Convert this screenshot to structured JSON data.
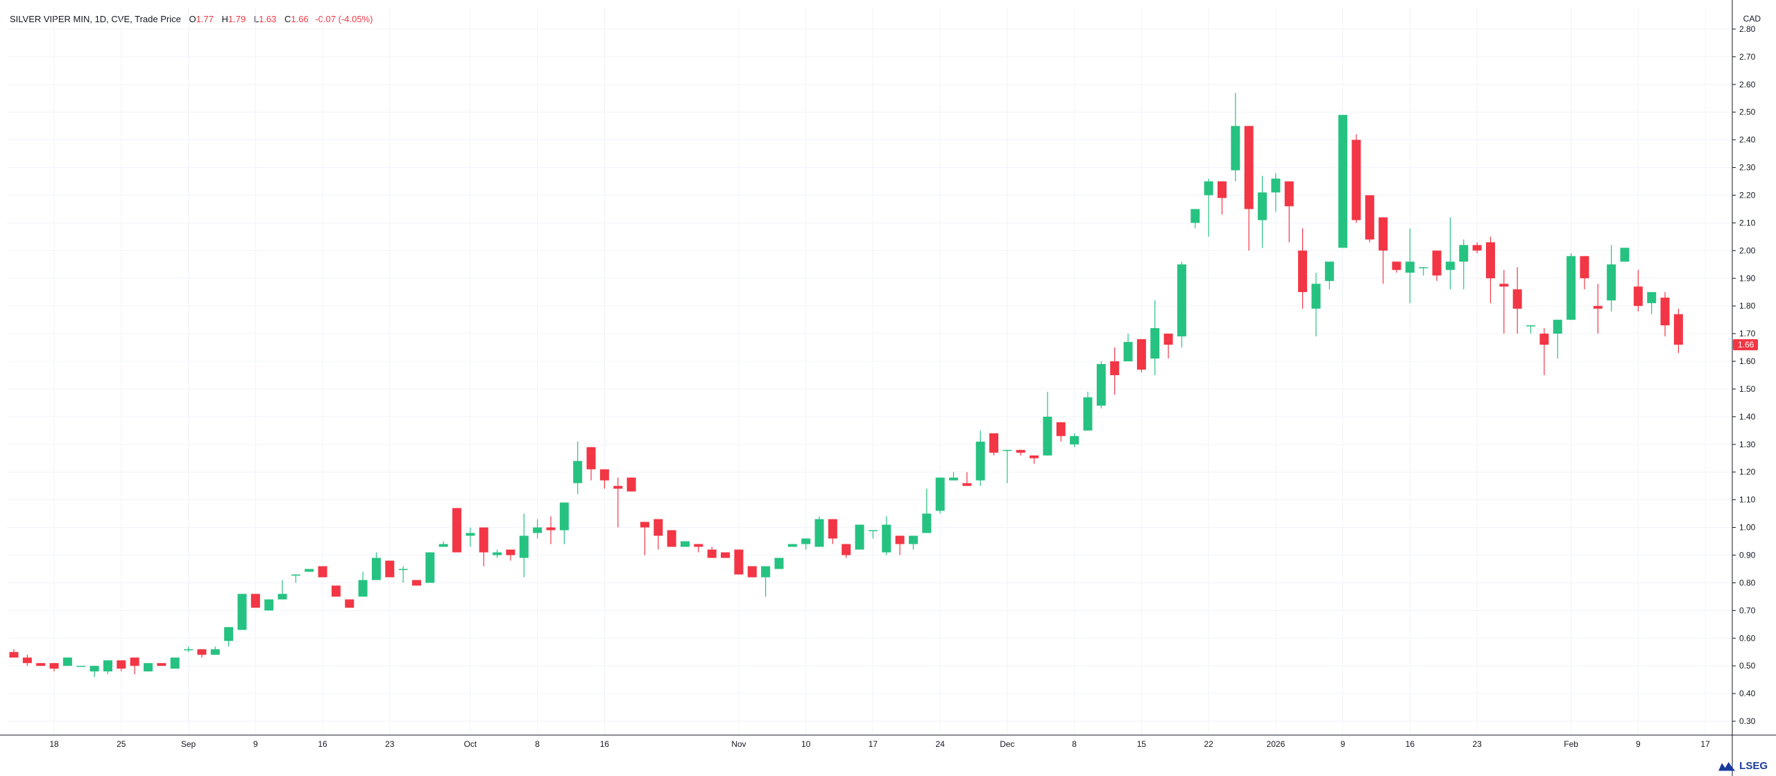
{
  "header": {
    "symbol": "SILVER VIPER MIN, 1D, CVE, Trade Price",
    "o_label": "O",
    "o_value": "1.77",
    "h_label": "H",
    "h_value": "1.79",
    "l_label": "L",
    "l_value": "1.63",
    "c_label": "C",
    "c_value": "1.66",
    "change": "-0.07 (-4.05%)"
  },
  "currency": "CAD",
  "brand": "LSEG",
  "colors": {
    "up": "#26c281",
    "down": "#f23645",
    "grid": "#f0f3fa",
    "axis": "#131722"
  },
  "chart_data": {
    "type": "candlestick",
    "ylim": [
      0.25,
      2.88
    ],
    "y_ticks": [
      "0.30",
      "0.40",
      "0.50",
      "0.60",
      "0.70",
      "0.80",
      "0.90",
      "1.00",
      "1.10",
      "1.20",
      "1.30",
      "1.40",
      "1.50",
      "1.60",
      "1.70",
      "1.80",
      "1.90",
      "2.00",
      "2.10",
      "2.20",
      "2.30",
      "2.40",
      "2.50",
      "2.60",
      "2.70",
      "2.80"
    ],
    "x_ticks": [
      {
        "label": "18",
        "index": 3
      },
      {
        "label": "25",
        "index": 8
      },
      {
        "label": "Sep",
        "index": 13
      },
      {
        "label": "9",
        "index": 18
      },
      {
        "label": "16",
        "index": 23
      },
      {
        "label": "23",
        "index": 28
      },
      {
        "label": "Oct",
        "index": 34
      },
      {
        "label": "8",
        "index": 39
      },
      {
        "label": "16",
        "index": 44
      },
      {
        "label": "Nov",
        "index": 54
      },
      {
        "label": "10",
        "index": 59
      },
      {
        "label": "17",
        "index": 64
      },
      {
        "label": "24",
        "index": 69
      },
      {
        "label": "Dec",
        "index": 74
      },
      {
        "label": "8",
        "index": 79
      },
      {
        "label": "15",
        "index": 84
      },
      {
        "label": "22",
        "index": 89
      },
      {
        "label": "2026",
        "index": 94
      },
      {
        "label": "9",
        "index": 99
      },
      {
        "label": "16",
        "index": 104
      },
      {
        "label": "23",
        "index": 109
      },
      {
        "label": "Feb",
        "index": 116
      },
      {
        "label": "9",
        "index": 121
      },
      {
        "label": "17",
        "index": 126
      }
    ],
    "last_price_label": "1.66",
    "candles": [
      [
        0.55,
        0.56,
        0.53,
        0.53
      ],
      [
        0.53,
        0.54,
        0.5,
        0.51
      ],
      [
        0.51,
        0.51,
        0.5,
        0.5
      ],
      [
        0.51,
        0.51,
        0.48,
        0.49
      ],
      [
        0.5,
        0.53,
        0.5,
        0.53
      ],
      [
        0.5,
        0.5,
        0.5,
        0.5
      ],
      [
        0.48,
        0.5,
        0.46,
        0.5
      ],
      [
        0.48,
        0.52,
        0.47,
        0.52
      ],
      [
        0.52,
        0.52,
        0.48,
        0.49
      ],
      [
        0.53,
        0.53,
        0.47,
        0.5
      ],
      [
        0.48,
        0.51,
        0.48,
        0.51
      ],
      [
        0.51,
        0.51,
        0.5,
        0.5
      ],
      [
        0.49,
        0.53,
        0.49,
        0.53
      ],
      [
        0.56,
        0.57,
        0.55,
        0.56
      ],
      [
        0.56,
        0.56,
        0.53,
        0.54
      ],
      [
        0.54,
        0.57,
        0.54,
        0.56
      ],
      [
        0.59,
        0.64,
        0.57,
        0.64
      ],
      [
        0.63,
        0.76,
        0.63,
        0.76
      ],
      [
        0.76,
        0.76,
        0.71,
        0.71
      ],
      [
        0.7,
        0.74,
        0.7,
        0.74
      ],
      [
        0.74,
        0.81,
        0.74,
        0.76
      ],
      [
        0.83,
        0.83,
        0.8,
        0.83
      ],
      [
        0.84,
        0.85,
        0.84,
        0.85
      ],
      [
        0.86,
        0.86,
        0.82,
        0.82
      ],
      [
        0.79,
        0.79,
        0.75,
        0.75
      ],
      [
        0.74,
        0.74,
        0.71,
        0.71
      ],
      [
        0.75,
        0.84,
        0.75,
        0.81
      ],
      [
        0.81,
        0.91,
        0.81,
        0.89
      ],
      [
        0.88,
        0.88,
        0.82,
        0.82
      ],
      [
        0.85,
        0.86,
        0.8,
        0.85
      ],
      [
        0.81,
        0.81,
        0.79,
        0.79
      ],
      [
        0.8,
        0.91,
        0.8,
        0.91
      ],
      [
        0.93,
        0.95,
        0.93,
        0.94
      ],
      [
        1.07,
        1.07,
        0.91,
        0.91
      ],
      [
        0.97,
        1.0,
        0.93,
        0.98
      ],
      [
        1.0,
        1.0,
        0.86,
        0.91
      ],
      [
        0.9,
        0.92,
        0.89,
        0.91
      ],
      [
        0.92,
        0.92,
        0.88,
        0.9
      ],
      [
        0.89,
        1.05,
        0.82,
        0.97
      ],
      [
        0.98,
        1.03,
        0.96,
        1.0
      ],
      [
        1.0,
        1.04,
        0.94,
        0.99
      ],
      [
        0.99,
        1.09,
        0.94,
        1.09
      ],
      [
        1.16,
        1.31,
        1.12,
        1.24
      ],
      [
        1.29,
        1.29,
        1.17,
        1.21
      ],
      [
        1.21,
        1.21,
        1.14,
        1.17
      ],
      [
        1.15,
        1.18,
        1.0,
        1.14
      ],
      [
        1.18,
        1.18,
        1.13,
        1.13
      ],
      [
        1.02,
        1.02,
        0.9,
        1.0
      ],
      [
        1.03,
        1.03,
        0.92,
        0.97
      ],
      [
        0.99,
        0.99,
        0.93,
        0.93
      ],
      [
        0.93,
        0.95,
        0.93,
        0.95
      ],
      [
        0.94,
        0.94,
        0.91,
        0.93
      ],
      [
        0.92,
        0.93,
        0.89,
        0.89
      ],
      [
        0.91,
        0.91,
        0.89,
        0.89
      ],
      [
        0.92,
        0.92,
        0.83,
        0.83
      ],
      [
        0.86,
        0.86,
        0.82,
        0.82
      ],
      [
        0.82,
        0.86,
        0.75,
        0.86
      ],
      [
        0.85,
        0.89,
        0.85,
        0.89
      ],
      [
        0.93,
        0.94,
        0.93,
        0.94
      ],
      [
        0.94,
        0.96,
        0.92,
        0.96
      ],
      [
        0.93,
        1.04,
        0.93,
        1.03
      ],
      [
        1.03,
        1.03,
        0.94,
        0.96
      ],
      [
        0.94,
        0.94,
        0.89,
        0.9
      ],
      [
        0.92,
        1.01,
        0.92,
        1.01
      ],
      [
        0.99,
        0.99,
        0.96,
        0.99
      ],
      [
        0.91,
        1.04,
        0.9,
        1.01
      ],
      [
        0.97,
        0.97,
        0.9,
        0.94
      ],
      [
        0.94,
        0.96,
        0.92,
        0.97
      ],
      [
        0.98,
        1.14,
        0.98,
        1.05
      ],
      [
        1.06,
        1.18,
        1.05,
        1.18
      ],
      [
        1.17,
        1.2,
        1.17,
        1.18
      ],
      [
        1.16,
        1.2,
        1.15,
        1.15
      ],
      [
        1.17,
        1.35,
        1.15,
        1.31
      ],
      [
        1.34,
        1.34,
        1.26,
        1.27
      ],
      [
        1.28,
        1.28,
        1.16,
        1.28
      ],
      [
        1.28,
        1.28,
        1.26,
        1.27
      ],
      [
        1.26,
        1.26,
        1.23,
        1.25
      ],
      [
        1.26,
        1.49,
        1.26,
        1.4
      ],
      [
        1.38,
        1.38,
        1.31,
        1.33
      ],
      [
        1.3,
        1.34,
        1.29,
        1.33
      ],
      [
        1.35,
        1.49,
        1.35,
        1.47
      ],
      [
        1.44,
        1.6,
        1.43,
        1.59
      ],
      [
        1.6,
        1.65,
        1.48,
        1.55
      ],
      [
        1.6,
        1.7,
        1.6,
        1.67
      ],
      [
        1.68,
        1.68,
        1.56,
        1.57
      ],
      [
        1.61,
        1.82,
        1.55,
        1.72
      ],
      [
        1.7,
        1.7,
        1.61,
        1.66
      ],
      [
        1.69,
        1.96,
        1.65,
        1.95
      ],
      [
        2.1,
        2.15,
        2.08,
        2.15
      ],
      [
        2.2,
        2.26,
        2.05,
        2.25
      ],
      [
        2.25,
        2.25,
        2.13,
        2.19
      ],
      [
        2.29,
        2.57,
        2.25,
        2.45
      ],
      [
        2.45,
        2.45,
        2.0,
        2.15
      ],
      [
        2.11,
        2.27,
        2.01,
        2.21
      ],
      [
        2.21,
        2.28,
        2.14,
        2.26
      ],
      [
        2.25,
        2.25,
        2.03,
        2.16
      ],
      [
        2.0,
        2.08,
        1.79,
        1.85
      ],
      [
        1.79,
        1.92,
        1.69,
        1.88
      ],
      [
        1.89,
        1.96,
        1.86,
        1.96
      ],
      [
        2.01,
        2.49,
        2.01,
        2.49
      ],
      [
        2.4,
        2.42,
        2.1,
        2.11
      ],
      [
        2.2,
        2.2,
        2.03,
        2.04
      ],
      [
        2.12,
        2.12,
        1.88,
        2.0
      ],
      [
        1.96,
        1.96,
        1.92,
        1.93
      ],
      [
        1.92,
        2.08,
        1.81,
        1.96
      ],
      [
        1.94,
        1.94,
        1.91,
        1.94
      ],
      [
        2.0,
        2.0,
        1.89,
        1.91
      ],
      [
        1.93,
        2.12,
        1.86,
        1.96
      ],
      [
        1.96,
        2.04,
        1.86,
        2.02
      ],
      [
        2.02,
        2.03,
        1.99,
        2.0
      ],
      [
        2.03,
        2.05,
        1.81,
        1.9
      ],
      [
        1.88,
        1.93,
        1.7,
        1.87
      ],
      [
        1.86,
        1.94,
        1.7,
        1.79
      ],
      [
        1.73,
        1.73,
        1.7,
        1.73
      ],
      [
        1.7,
        1.72,
        1.55,
        1.66
      ],
      [
        1.7,
        1.75,
        1.61,
        1.75
      ],
      [
        1.75,
        1.99,
        1.75,
        1.98
      ],
      [
        1.98,
        1.98,
        1.86,
        1.9
      ],
      [
        1.8,
        1.88,
        1.7,
        1.79
      ],
      [
        1.82,
        2.02,
        1.78,
        1.95
      ],
      [
        1.96,
        2.01,
        1.96,
        2.01
      ],
      [
        1.87,
        1.93,
        1.78,
        1.8
      ],
      [
        1.81,
        1.85,
        1.77,
        1.85
      ],
      [
        1.83,
        1.85,
        1.69,
        1.73
      ],
      [
        1.77,
        1.79,
        1.63,
        1.66
      ]
    ]
  }
}
